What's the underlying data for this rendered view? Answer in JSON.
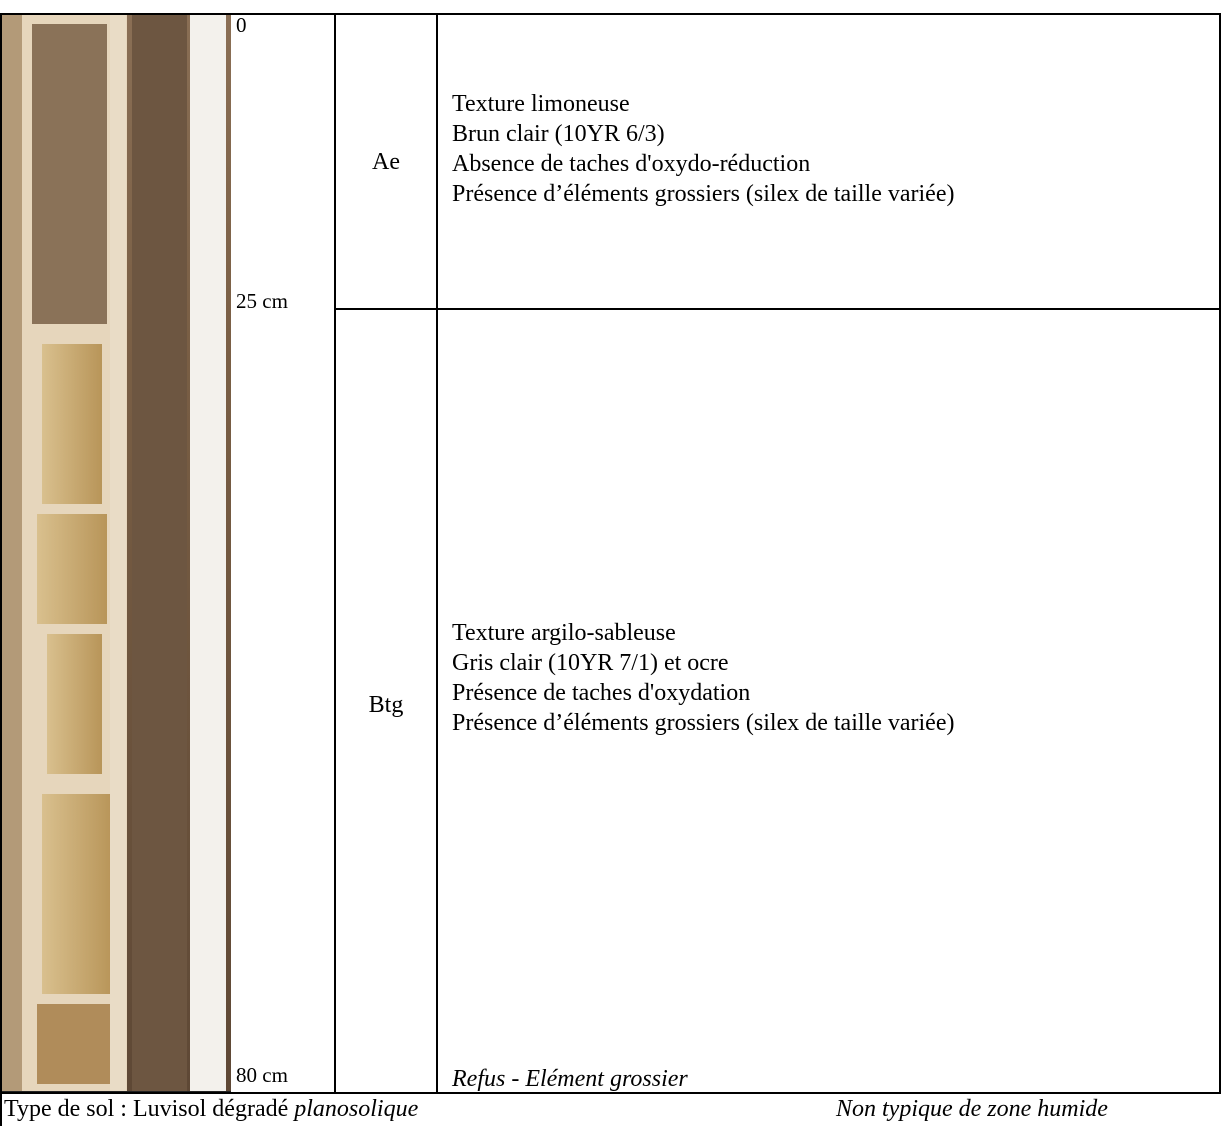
{
  "profile": {
    "depths": [
      "0",
      "25 cm",
      "80 cm"
    ],
    "horizons": [
      {
        "name": "Ae",
        "description": [
          "Texture limoneuse",
          "Brun clair (10YR 6/3)",
          "Absence de taches d'oxydo-réduction",
          "Présence d’éléments grossiers (silex de taille variée)"
        ]
      },
      {
        "name": "Btg",
        "description": [
          "Texture argilo-sableuse",
          "Gris clair (10YR 7/1) et ocre",
          "Présence de taches d'oxydation",
          "Présence d’éléments grossiers (silex de taille variée)"
        ],
        "note": "Refus - Elément grossier"
      }
    ]
  },
  "footer": {
    "soil_type_label": "Type de sol : Luvisol dégradé",
    "soil_type_qualifier": "planosolique",
    "conclusion": "Non typique de zone humide"
  }
}
